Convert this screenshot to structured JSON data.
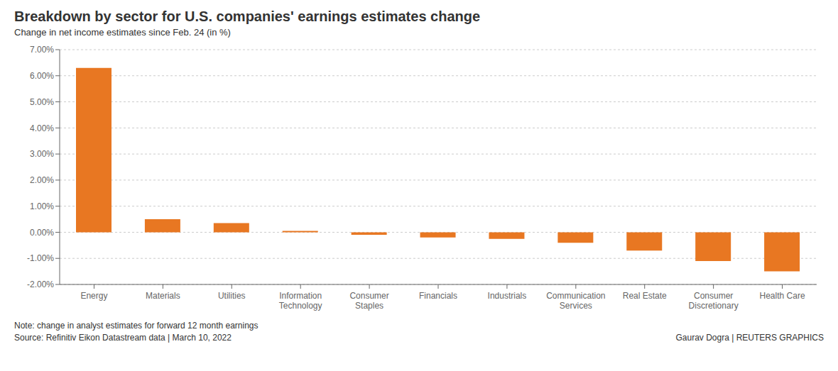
{
  "chart_data": {
    "type": "bar",
    "title": "Breakdown by sector for U.S. companies' earnings estimates change",
    "subtitle": "Change in net income estimates since Feb. 24 (in %)",
    "categories": [
      "Energy",
      "Materials",
      "Utilities",
      "Information\nTechnology",
      "Consumer\nStaples",
      "Financials",
      "Industrials",
      "Communication\nServices",
      "Real Estate",
      "Consumer\nDiscretionary",
      "Health Care"
    ],
    "values": [
      6.3,
      0.5,
      0.35,
      0.05,
      -0.1,
      -0.2,
      -0.25,
      -0.4,
      -0.7,
      -1.1,
      -1.5
    ],
    "color": "#E87722",
    "ylim": [
      -2.0,
      7.0
    ],
    "yticks": [
      {
        "value": -2.0,
        "label": "-2.00%"
      },
      {
        "value": -1.0,
        "label": "-1.00%"
      },
      {
        "value": 0.0,
        "label": "0.00%"
      },
      {
        "value": 1.0,
        "label": "1.00%"
      },
      {
        "value": 2.0,
        "label": "2.00%"
      },
      {
        "value": 3.0,
        "label": "3.00%"
      },
      {
        "value": 4.0,
        "label": "4.00%"
      },
      {
        "value": 5.0,
        "label": "5.00%"
      },
      {
        "value": 6.0,
        "label": "6.00%"
      },
      {
        "value": 7.0,
        "label": "7.00%"
      }
    ],
    "grid": true,
    "annotations": [
      "Note: change in analyst estimates for forward 12 month earnings",
      "Source: Refinitiv Eikon Datastream data | March 10, 2022",
      "Gaurav Dogra | REUTERS GRAPHICS"
    ]
  }
}
